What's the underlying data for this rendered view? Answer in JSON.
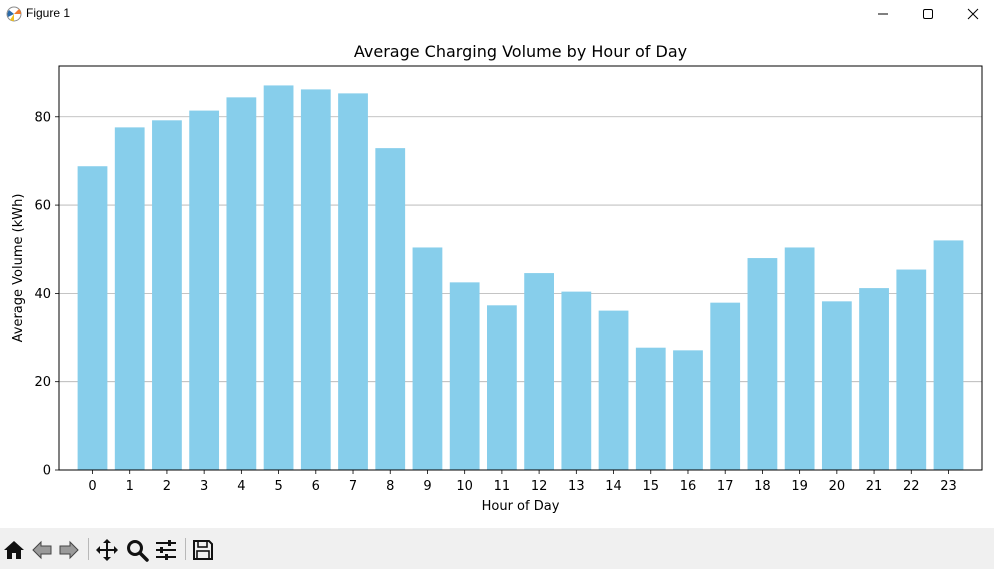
{
  "window": {
    "title": "Figure 1",
    "icons": {
      "app": "matplotlib-icon",
      "minimize": "minimize-icon",
      "maximize": "maximize-icon",
      "close": "close-icon"
    }
  },
  "toolbar": {
    "tools": [
      {
        "name": "home-button",
        "icon": "home-icon"
      },
      {
        "name": "back-button",
        "icon": "back-arrow-icon"
      },
      {
        "name": "forward-button",
        "icon": "forward-arrow-icon"
      },
      {
        "name": "pan-button",
        "icon": "move-icon"
      },
      {
        "name": "zoom-button",
        "icon": "zoom-icon"
      },
      {
        "name": "configure-subplots-button",
        "icon": "sliders-icon"
      },
      {
        "name": "save-button",
        "icon": "save-icon"
      }
    ]
  },
  "chart_data": {
    "type": "bar",
    "title": "Average Charging Volume by Hour of Day",
    "xlabel": "Hour of Day",
    "ylabel": "Average Volume (kWh)",
    "categories": [
      "0",
      "1",
      "2",
      "3",
      "4",
      "5",
      "6",
      "7",
      "8",
      "9",
      "10",
      "11",
      "12",
      "13",
      "14",
      "15",
      "16",
      "17",
      "18",
      "19",
      "20",
      "21",
      "22",
      "23"
    ],
    "values": [
      68.8,
      77.6,
      79.2,
      81.4,
      84.4,
      87.1,
      86.2,
      85.3,
      72.9,
      50.4,
      42.5,
      37.3,
      44.6,
      40.4,
      36.1,
      27.7,
      27.1,
      37.9,
      48.0,
      50.4,
      38.2,
      41.2,
      45.4,
      52.0
    ],
    "yticks": [
      0,
      20,
      40,
      60,
      80
    ],
    "ylim": [
      0,
      91.5
    ],
    "grid": "y",
    "bar_color": "#87ceeb"
  }
}
